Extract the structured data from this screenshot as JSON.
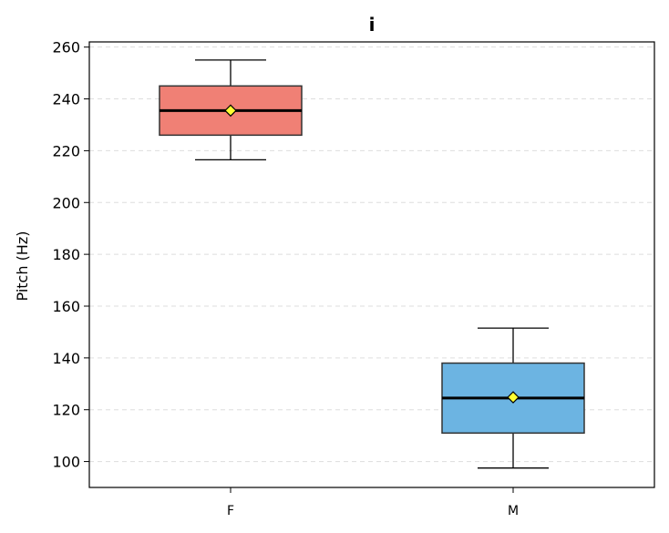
{
  "chart_data": {
    "type": "box",
    "title": "i",
    "xlabel": "",
    "ylabel": "Pitch (Hz)",
    "ylim": [
      90,
      262
    ],
    "yticks": [
      100,
      120,
      140,
      160,
      180,
      200,
      220,
      240,
      260
    ],
    "grid": "y-dashed",
    "categories": [
      "F",
      "M"
    ],
    "boxes": [
      {
        "category": "F",
        "whisker_low": 216.5,
        "q1": 226,
        "median": 235.5,
        "q3": 245,
        "whisker_high": 255,
        "mean": 235.5,
        "color": "#f08075"
      },
      {
        "category": "M",
        "whisker_low": 97.5,
        "q1": 111,
        "median": 124.5,
        "q3": 138,
        "whisker_high": 151.5,
        "mean": 124.8,
        "color": "#6cb4e2"
      }
    ],
    "mean_marker_color": "#ffff33",
    "median_color": "#000000"
  }
}
